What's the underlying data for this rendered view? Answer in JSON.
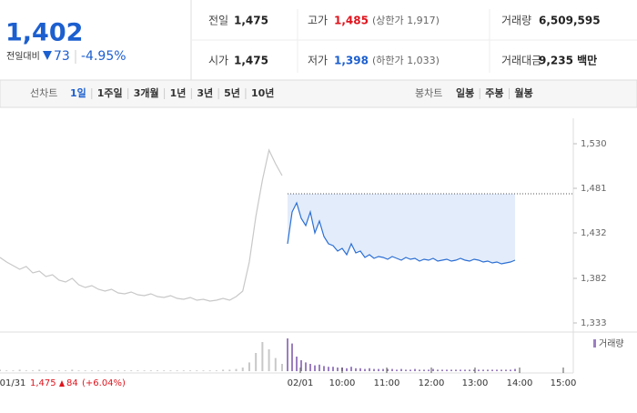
{
  "header": {
    "price": "1,402",
    "change_label": "전일대비",
    "change": "73",
    "change_rate": "-4.95%"
  },
  "info": {
    "rows": [
      [
        {
          "label": "전일",
          "value": "1,475"
        },
        {
          "label": "고가",
          "value": "1,485",
          "note": "(상한가 1,917)"
        },
        {
          "label": "거래량",
          "value": "6,509,595"
        }
      ],
      [
        {
          "label": "시가",
          "value": "1,475"
        },
        {
          "label": "저가",
          "value": "1,398",
          "note": "(하한가 1,033)"
        },
        {
          "label": "거래대금",
          "value": "9,235 백만"
        }
      ]
    ]
  },
  "tabs": {
    "line_label": "선차트",
    "line_tabs": [
      "1일",
      "1주일",
      "3개월",
      "1년",
      "3년",
      "5년",
      "10년"
    ],
    "active": "1일",
    "candle_label": "봉차트",
    "candle_tabs": [
      "일봉",
      "주봉",
      "월봉"
    ]
  },
  "chart_data": {
    "type": "line",
    "ylim": [
      1323,
      1558
    ],
    "yticks": [
      {
        "value": 1530,
        "label": "1,530"
      },
      {
        "value": 1481,
        "label": "1,481"
      },
      {
        "value": 1432,
        "label": "1,432"
      },
      {
        "value": 1382,
        "label": "1,382"
      },
      {
        "value": 1333,
        "label": "1,333"
      }
    ],
    "reference": 1475,
    "xticks": [
      "01/31",
      "02/01",
      "10:00",
      "11:00",
      "12:00",
      "13:00",
      "14:00",
      "15:00"
    ],
    "prev_summary": {
      "price": "1,475",
      "change": "84",
      "rate": "(+6.04%)"
    },
    "series": [
      {
        "color": "#c8c8c8",
        "values": [
          1405,
          1400,
          1396,
          1392,
          1395,
          1388,
          1390,
          1384,
          1386,
          1380,
          1378,
          1382,
          1375,
          1372,
          1374,
          1370,
          1368,
          1370,
          1366,
          1365,
          1367,
          1364,
          1363,
          1365,
          1362,
          1361,
          1363,
          1360,
          1359,
          1361,
          1358,
          1359,
          1357,
          1358,
          1360,
          1358,
          1362,
          1368,
          1400,
          1450,
          1490,
          1523,
          1508,
          1495
        ]
      },
      {
        "color": "#2c6fd4",
        "values": [
          1420,
          1455,
          1465,
          1448,
          1440,
          1455,
          1432,
          1445,
          1428,
          1420,
          1418,
          1412,
          1415,
          1408,
          1420,
          1410,
          1412,
          1405,
          1408,
          1404,
          1406,
          1405,
          1403,
          1406,
          1404,
          1402,
          1405,
          1403,
          1404,
          1401,
          1403,
          1402,
          1404,
          1401,
          1402,
          1403,
          1401,
          1402,
          1404,
          1402,
          1401,
          1403,
          1402,
          1400,
          1401,
          1399,
          1400,
          1398,
          1399,
          1400,
          1402
        ]
      }
    ],
    "volume": {
      "name": "거래량",
      "color": "#9b7fc0",
      "prev_color": "#c8c8c8",
      "prev_values": [
        2,
        1,
        1,
        2,
        1,
        1,
        2,
        1,
        1,
        1,
        1,
        2,
        1,
        1,
        1,
        1,
        1,
        1,
        1,
        1,
        1,
        1,
        1,
        1,
        1,
        1,
        1,
        1,
        1,
        1,
        1,
        1,
        1,
        1,
        2,
        2,
        3,
        5,
        12,
        25,
        40,
        30,
        18,
        10
      ],
      "values": [
        45,
        38,
        20,
        15,
        12,
        10,
        8,
        9,
        7,
        6,
        6,
        5,
        5,
        4,
        6,
        4,
        4,
        3,
        4,
        3,
        3,
        3,
        3,
        3,
        2,
        3,
        2,
        2,
        3,
        2,
        2,
        2,
        3,
        2,
        2,
        2,
        2,
        2,
        2,
        2,
        2,
        2,
        2,
        2,
        2,
        2,
        2,
        2,
        2,
        2,
        3
      ]
    }
  }
}
